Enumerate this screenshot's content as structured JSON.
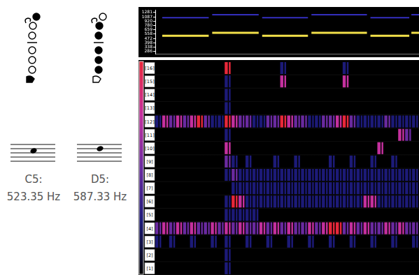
{
  "notes": [
    {
      "name": "C5:",
      "frequency": "523.35 Hz"
    },
    {
      "name": "D5:",
      "frequency": "587.33 Hz"
    }
  ],
  "chart_data": {
    "type": "line",
    "x": [
      1,
      7.7,
      7.95,
      8.2,
      14.9,
      15.15,
      15.4,
      22,
      22.25,
      22.5,
      30.5,
      30.75,
      31,
      36.6,
      36.75,
      36.9,
      38
    ],
    "xlim": [
      0,
      38
    ],
    "ylim": [
      260,
      1400
    ],
    "yticks": [
      286,
      338,
      398,
      472,
      558,
      659,
      780,
      920,
      1087,
      1281
    ],
    "log": "y",
    "grid": false,
    "tick_labels": "y",
    "series": [
      {
        "color": "#f2e04a",
        "values": [
          523,
          523,
          null,
          587,
          587,
          null,
          523,
          523,
          null,
          587,
          587,
          null,
          523,
          523,
          null,
          587,
          587
        ]
      },
      {
        "color": "#3b35d8",
        "values": [
          1046,
          1046,
          null,
          1174,
          1174,
          null,
          1046,
          1046,
          null,
          1174,
          1174,
          null,
          1046,
          1046,
          null,
          1174,
          1174
        ]
      }
    ]
  },
  "heatmap": {
    "row_labels": [
      "[16]",
      "[15]",
      "[14]",
      "[13]",
      "[12]",
      "[11]",
      "[10]",
      "[9]",
      "[8]",
      "[7]",
      "[6]",
      "[5]",
      "[4]",
      "[3]",
      "[2]",
      "[1]"
    ],
    "cells": [
      [
        0,
        0,
        0,
        0,
        0,
        0,
        0,
        0,
        0,
        0,
        4,
        0,
        0,
        0,
        0,
        0,
        0,
        0,
        1,
        0,
        0,
        0,
        0,
        0,
        0,
        0,
        0,
        1,
        0,
        0,
        0,
        0,
        0,
        0,
        0,
        0,
        0,
        0
      ],
      [
        0,
        0,
        0,
        0,
        0,
        0,
        0,
        0,
        0,
        0,
        1,
        0,
        0,
        0,
        0,
        0,
        0,
        0,
        3,
        0,
        0,
        0,
        0,
        0,
        0,
        0,
        0,
        3,
        0,
        0,
        0,
        0,
        0,
        0,
        0,
        0,
        0,
        0
      ],
      [
        0,
        0,
        0,
        0,
        0,
        0,
        0,
        0,
        0,
        0,
        1,
        0,
        0,
        0,
        0,
        0,
        0,
        0,
        0,
        0,
        0,
        0,
        0,
        0,
        0,
        0,
        0,
        0,
        0,
        0,
        0,
        0,
        0,
        0,
        0,
        0,
        0,
        0
      ],
      [
        0,
        0,
        0,
        0,
        0,
        0,
        0,
        0,
        0,
        0,
        1,
        0,
        0,
        0,
        0,
        0,
        0,
        0,
        0,
        0,
        0,
        0,
        0,
        0,
        0,
        0,
        0,
        0,
        0,
        0,
        0,
        0,
        0,
        0,
        0,
        0,
        0,
        0
      ],
      [
        1,
        3,
        2,
        3,
        2,
        3,
        4,
        2,
        1,
        1,
        4,
        3,
        2,
        2,
        1,
        1,
        2,
        2,
        4,
        3,
        2,
        2,
        1,
        1,
        2,
        2,
        3,
        4,
        2,
        1,
        1,
        1,
        1,
        2,
        1,
        1,
        1,
        1
      ],
      [
        0,
        0,
        0,
        0,
        0,
        0,
        0,
        0,
        0,
        0,
        1,
        0,
        0,
        0,
        0,
        0,
        0,
        0,
        0,
        0,
        0,
        0,
        0,
        0,
        0,
        0,
        0,
        0,
        0,
        0,
        0,
        0,
        0,
        0,
        0,
        3,
        2,
        0
      ],
      [
        0,
        0,
        0,
        0,
        0,
        0,
        0,
        0,
        0,
        0,
        3,
        0,
        0,
        0,
        0,
        0,
        0,
        0,
        0,
        0,
        0,
        0,
        0,
        0,
        0,
        0,
        0,
        0,
        0,
        0,
        0,
        0,
        3,
        0,
        0,
        0,
        0,
        0
      ],
      [
        0,
        0,
        0,
        0,
        0,
        0,
        0,
        0,
        0,
        0,
        2,
        1,
        0,
        1,
        0,
        0,
        0,
        1,
        0,
        0,
        1,
        0,
        0,
        0,
        0,
        1,
        0,
        0,
        1,
        0,
        0,
        1,
        0,
        0,
        1,
        0,
        0,
        0
      ],
      [
        0,
        0,
        0,
        0,
        0,
        0,
        0,
        0,
        0,
        0,
        1,
        2,
        1,
        1,
        1,
        1,
        1,
        1,
        1,
        1,
        1,
        1,
        1,
        1,
        1,
        1,
        1,
        1,
        1,
        1,
        1,
        1,
        1,
        1,
        1,
        1,
        1,
        1
      ],
      [
        0,
        0,
        0,
        0,
        0,
        0,
        0,
        0,
        0,
        0,
        0,
        1,
        1,
        1,
        1,
        1,
        1,
        1,
        1,
        1,
        1,
        1,
        1,
        1,
        1,
        1,
        1,
        1,
        1,
        1,
        1,
        1,
        1,
        1,
        1,
        1,
        1,
        1
      ],
      [
        0,
        0,
        0,
        0,
        0,
        0,
        0,
        0,
        0,
        0,
        1,
        4,
        3,
        1,
        1,
        1,
        1,
        1,
        1,
        1,
        1,
        1,
        1,
        1,
        1,
        1,
        1,
        1,
        1,
        1,
        3,
        3,
        1,
        1,
        1,
        1,
        1,
        1
      ],
      [
        0,
        0,
        0,
        0,
        0,
        0,
        0,
        0,
        0,
        0,
        1,
        1,
        1,
        1,
        1,
        0,
        0,
        0,
        0,
        0,
        0,
        0,
        0,
        0,
        0,
        0,
        0,
        0,
        0,
        0,
        0,
        0,
        0,
        0,
        0,
        0,
        0,
        0
      ],
      [
        2,
        3,
        2,
        3,
        2,
        3,
        2,
        2,
        3,
        2,
        3,
        2,
        3,
        2,
        2,
        3,
        2,
        3,
        2,
        3,
        2,
        2,
        3,
        2,
        3,
        4,
        4,
        2,
        3,
        2,
        3,
        2,
        2,
        3,
        2,
        3,
        2,
        2
      ],
      [
        1,
        0,
        1,
        0,
        0,
        1,
        0,
        0,
        1,
        0,
        1,
        0,
        0,
        1,
        0,
        0,
        1,
        0,
        0,
        1,
        0,
        0,
        1,
        0,
        0,
        1,
        0,
        0,
        1,
        0,
        0,
        1,
        0,
        0,
        1,
        0,
        0,
        1
      ],
      [
        0,
        0,
        0,
        0,
        0,
        0,
        0,
        0,
        0,
        0,
        1,
        0,
        0,
        0,
        0,
        0,
        0,
        0,
        0,
        0,
        0,
        0,
        0,
        0,
        0,
        0,
        0,
        0,
        0,
        0,
        0,
        0,
        0,
        0,
        0,
        0,
        0,
        0
      ],
      [
        0,
        0,
        0,
        0,
        0,
        0,
        0,
        0,
        0,
        0,
        1,
        0,
        0,
        0,
        0,
        0,
        0,
        0,
        0,
        0,
        0,
        0,
        0,
        0,
        0,
        0,
        0,
        0,
        0,
        0,
        0,
        0,
        0,
        0,
        0,
        0,
        0,
        0
      ]
    ],
    "colorbar": {
      "range": [
        0,
        4
      ],
      "colors": [
        "#000000",
        "#1c1a78",
        "#6a2aa0",
        "#c4309e",
        "#e8283a"
      ]
    }
  }
}
